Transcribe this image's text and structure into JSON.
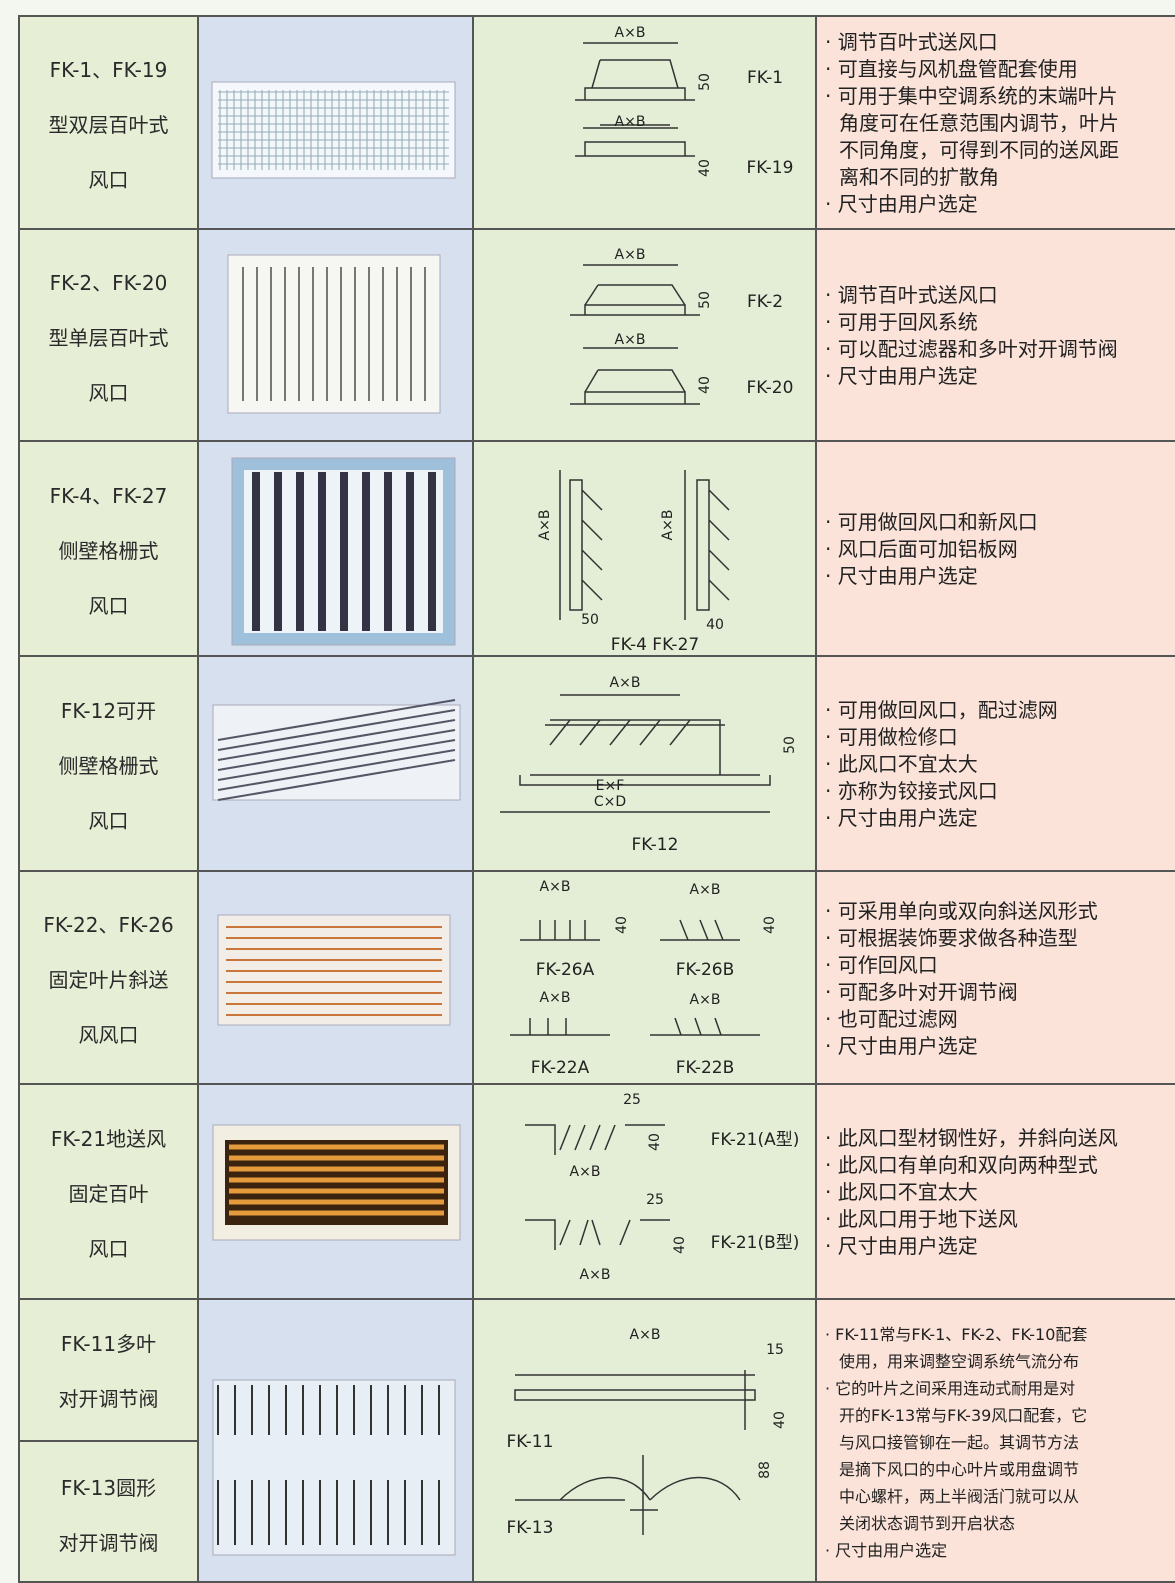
{
  "rows": [
    {
      "name": [
        "FK-1、FK-19",
        "型双层百叶式",
        "风口"
      ],
      "diagram_labels": [
        "A×B",
        "50",
        "FK-1",
        "A×B",
        "40",
        "FK-19"
      ],
      "description": [
        "· 调节百叶式送风口",
        "· 可直接与风机盘管配套使用",
        "· 可用于集中空调系统的末端叶片",
        "角度可在任意范围内调节，叶片",
        "不同角度，可得到不同的送风距",
        "离和不同的扩散角",
        "· 尺寸由用户选定"
      ]
    },
    {
      "name": [
        "FK-2、FK-20",
        "型单层百叶式",
        "风口"
      ],
      "diagram_labels": [
        "A×B",
        "50",
        "FK-2",
        "A×B",
        "40",
        "FK-20"
      ],
      "description": [
        "· 调节百叶式送风口",
        "· 可用于回风系统",
        "· 可以配过滤器和多叶对开调节阀",
        "· 尺寸由用户选定"
      ]
    },
    {
      "name": [
        "FK-4、FK-27",
        "侧壁格栅式",
        "风口"
      ],
      "diagram_labels": [
        "A×B",
        "A×B",
        "50",
        "40",
        "FK-4 FK-27"
      ],
      "description": [
        "· 可用做回风口和新风口",
        "· 风口后面可加铝板网",
        "· 尺寸由用户选定"
      ]
    },
    {
      "name": [
        "FK-12可开",
        "侧壁格栅式",
        "风口"
      ],
      "diagram_labels": [
        "A×B",
        "50",
        "E×F",
        "C×D",
        "FK-12"
      ],
      "description": [
        "· 可用做回风口，配过滤网",
        "· 可用做检修口",
        "· 此风口不宜太大",
        "· 亦称为铰接式风口",
        "· 尺寸由用户选定"
      ]
    },
    {
      "name": [
        "FK-22、FK-26",
        "固定叶片斜送",
        "风风口"
      ],
      "diagram_labels": [
        "A×B",
        "40",
        "FK-26A",
        "A×B",
        "40",
        "FK-26B",
        "A×B",
        "FK-22A",
        "A×B",
        "FK-22B"
      ],
      "description": [
        "· 可采用单向或双向斜送风形式",
        "· 可根据装饰要求做各种造型",
        "· 可作回风口",
        "· 可配多叶对开调节阀",
        "· 也可配过滤网",
        "· 尺寸由用户选定"
      ]
    },
    {
      "name": [
        "FK-21地送风",
        "固定百叶",
        "风口"
      ],
      "diagram_labels": [
        "25",
        "40",
        "A×B",
        "FK-21(A型)",
        "25",
        "40",
        "A×B",
        "FK-21(B型)"
      ],
      "description": [
        "· 此风口型材钢性好，并斜向送风",
        "· 此风口有单向和双向两种型式",
        "· 此风口不宜太大",
        "· 此风口用于地下送风",
        "· 尺寸由用户选定"
      ]
    },
    {
      "name": [
        "FK-11多叶",
        "对开调节阀"
      ],
      "name_2": [
        "FK-13圆形",
        "对开调节阀"
      ],
      "diagram_labels": [
        "A×B",
        "15",
        "40",
        "FK-11",
        "88",
        "FK-13"
      ],
      "description": [
        "· FK-11常与FK-1、FK-2、FK-10配套",
        "使用，用来调整空调系统气流分布",
        "· 它的叶片之间采用连动式耐用是对",
        "开的FK-13常与FK-39风口配套，它",
        "与风口接管铆在一起。其调节方法",
        "是摘下风口的中心叶片或用盘调节",
        "中心螺杆，两上半阀活门就可以从",
        "关闭状态调节到开启状态",
        "· 尺寸由用户选定"
      ]
    }
  ]
}
